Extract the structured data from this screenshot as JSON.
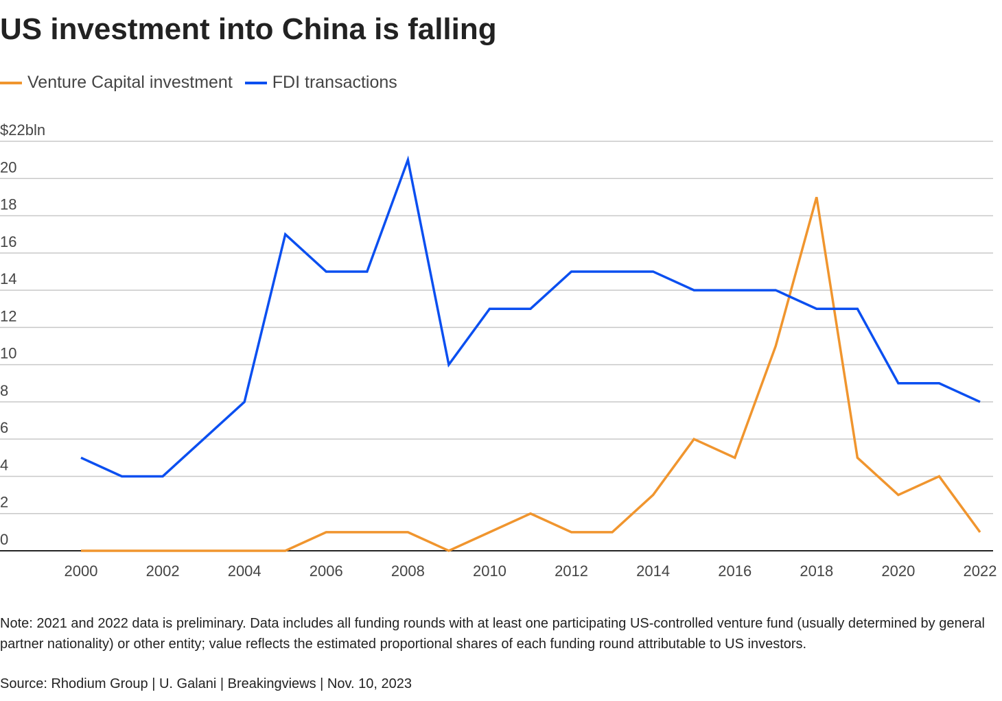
{
  "chart_data": {
    "type": "line",
    "title": "US investment into China is falling",
    "note": "Note: 2021 and 2022 data is preliminary. Data includes all funding rounds with at least one participating US-controlled venture fund (usually determined by general partner nationality) or other entity; value reflects the estimated proportional shares of each funding round attributable to US investors.",
    "source": "Source: Rhodium Group | U. Galani | Breakingviews | Nov. 10, 2023",
    "x": [
      2000,
      2001,
      2002,
      2003,
      2004,
      2005,
      2006,
      2007,
      2008,
      2009,
      2010,
      2011,
      2012,
      2013,
      2014,
      2015,
      2016,
      2017,
      2018,
      2019,
      2020,
      2021,
      2022
    ],
    "series": [
      {
        "name": "Venture Capital investment",
        "color": "#f0952e",
        "values": [
          0,
          0,
          0,
          0,
          0,
          0,
          1,
          1,
          1,
          0,
          1,
          2,
          1,
          1,
          3,
          6,
          5,
          11,
          19,
          5,
          3,
          4,
          1
        ]
      },
      {
        "name": "FDI transactions",
        "color": "#0b4ff0",
        "values": [
          5,
          4,
          4,
          6,
          8,
          17,
          15,
          15,
          21,
          10,
          13,
          13,
          15,
          15,
          15,
          14,
          14,
          14,
          13,
          13,
          9,
          9,
          8
        ]
      }
    ],
    "xlim": [
      2000,
      2022
    ],
    "xticks": [
      2000,
      2002,
      2004,
      2006,
      2008,
      2010,
      2012,
      2014,
      2016,
      2018,
      2020,
      2022
    ],
    "ylim": [
      0,
      22
    ],
    "yticks": [
      0,
      2,
      4,
      6,
      8,
      10,
      12,
      14,
      16,
      18,
      20,
      {
        "value": 22,
        "label": "$22bln"
      }
    ],
    "grid": true
  }
}
